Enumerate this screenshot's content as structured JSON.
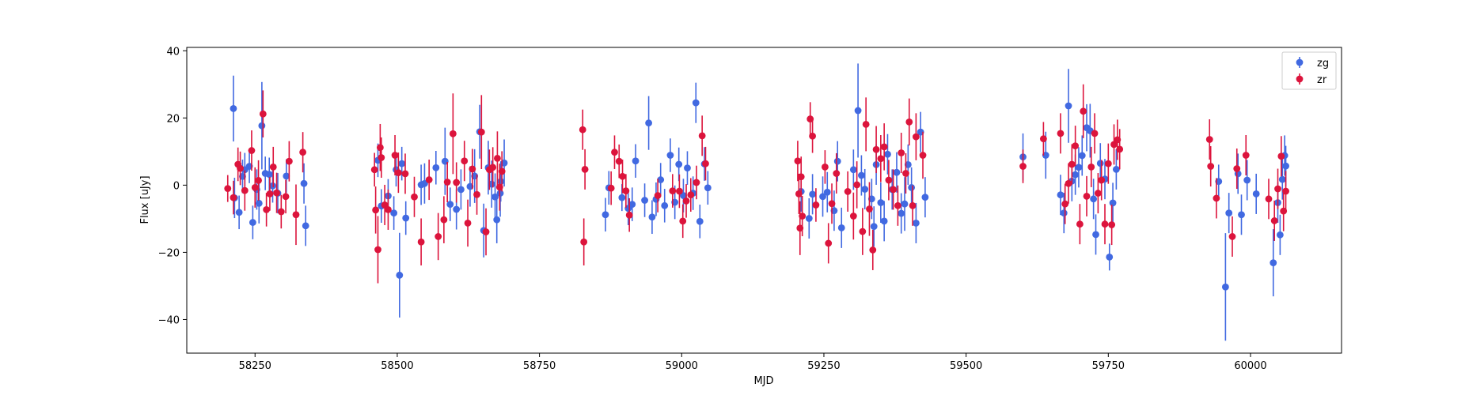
{
  "chart_data": {
    "type": "scatter",
    "title": "",
    "xlabel": "MJD",
    "ylabel": "Flux [uJy]",
    "xlim": [
      58130,
      60160
    ],
    "ylim": [
      -50,
      41
    ],
    "xticks": [
      58250,
      58500,
      58750,
      59000,
      59250,
      59500,
      59750,
      60000
    ],
    "yticks": [
      -40,
      -20,
      0,
      20,
      40
    ],
    "grid": false,
    "legend_position": "top-right",
    "series": [
      {
        "name": "zg",
        "color": "#4169e1",
        "points": [
          [
            58212,
            22.8,
            9.8
          ],
          [
            58214,
            -3.8,
            6
          ],
          [
            58222,
            -8.1,
            5
          ],
          [
            58228,
            2.6,
            5
          ],
          [
            58232,
            4.6,
            5
          ],
          [
            58240,
            5.6,
            5
          ],
          [
            58246,
            -11.1,
            5
          ],
          [
            58253,
            -1.3,
            6
          ],
          [
            58257,
            -5.4,
            6
          ],
          [
            58262,
            17.7,
            13
          ],
          [
            58268,
            3.5,
            5
          ],
          [
            58275,
            3.2,
            5
          ],
          [
            58281,
            -0.2,
            5
          ],
          [
            58290,
            -2.4,
            6
          ],
          [
            58305,
            2.7,
            5
          ],
          [
            58336,
            0.5,
            6
          ],
          [
            58339,
            -12.1,
            6
          ],
          [
            58466,
            7.4,
            5
          ],
          [
            58472,
            -6.2,
            5
          ],
          [
            58484,
            -3.2,
            5
          ],
          [
            58494,
            -8.3,
            5
          ],
          [
            58498,
            4.6,
            5
          ],
          [
            58504,
            -26.8,
            12.6
          ],
          [
            58508,
            6.4,
            5
          ],
          [
            58515,
            -9.8,
            5
          ],
          [
            58542,
            0.1,
            6
          ],
          [
            58548,
            0.5,
            6
          ],
          [
            58568,
            5.2,
            5
          ],
          [
            58584,
            7.1,
            10
          ],
          [
            58593,
            -5.7,
            5
          ],
          [
            58604,
            -7.2,
            6
          ],
          [
            58612,
            -1.3,
            6
          ],
          [
            58628,
            -0.4,
            6
          ],
          [
            58636,
            2.7,
            8
          ],
          [
            58645,
            15.9,
            8
          ],
          [
            58652,
            -13.5,
            8
          ],
          [
            58660,
            5.2,
            8
          ],
          [
            58666,
            0.3,
            7
          ],
          [
            58672,
            -3.5,
            7
          ],
          [
            58675,
            -10.3,
            7
          ],
          [
            58681,
            -2.4,
            7
          ],
          [
            58688,
            6.6,
            7
          ],
          [
            58682,
            1.1,
            6
          ],
          [
            58866,
            -8.8,
            5
          ],
          [
            58872,
            -0.8,
            5
          ],
          [
            58895,
            -3.7,
            4
          ],
          [
            58906,
            -6.9,
            5
          ],
          [
            58913,
            -5.7,
            5
          ],
          [
            58919,
            7.2,
            5
          ],
          [
            58935,
            -4.5,
            5
          ],
          [
            58942,
            18.5,
            8
          ],
          [
            58948,
            -9.5,
            5
          ],
          [
            58955,
            -4.2,
            5
          ],
          [
            58963,
            1.6,
            5
          ],
          [
            58970,
            -6.1,
            5
          ],
          [
            58980,
            8.9,
            5
          ],
          [
            58988,
            -5.1,
            5
          ],
          [
            58995,
            6.2,
            5
          ],
          [
            59003,
            -3.1,
            5
          ],
          [
            59010,
            5.1,
            5
          ],
          [
            59020,
            -2.4,
            5
          ],
          [
            59025,
            24.5,
            6
          ],
          [
            59032,
            -10.8,
            5
          ],
          [
            59040,
            6.3,
            5
          ],
          [
            59046,
            -0.8,
            5
          ],
          [
            59210,
            -1.9,
            6
          ],
          [
            59224,
            -9.9,
            6
          ],
          [
            59230,
            -2.7,
            6
          ],
          [
            59248,
            -3.4,
            6
          ],
          [
            59256,
            -2.1,
            6
          ],
          [
            59268,
            -7.6,
            6
          ],
          [
            59274,
            7.1,
            6
          ],
          [
            59281,
            -12.7,
            6
          ],
          [
            59302,
            4.6,
            6
          ],
          [
            59310,
            22.2,
            14
          ],
          [
            59316,
            2.9,
            6
          ],
          [
            59322,
            -1.2,
            6
          ],
          [
            59334,
            -4.1,
            6
          ],
          [
            59338,
            -12.3,
            6
          ],
          [
            59342,
            6.1,
            6
          ],
          [
            59350,
            -5.2,
            6
          ],
          [
            59356,
            -10.7,
            6
          ],
          [
            59362,
            9.2,
            6
          ],
          [
            59370,
            -1.3,
            6
          ],
          [
            59378,
            3.8,
            6
          ],
          [
            59386,
            -8.4,
            6
          ],
          [
            59392,
            -5.6,
            8
          ],
          [
            59398,
            6.1,
            6
          ],
          [
            59404,
            -0.7,
            6
          ],
          [
            59412,
            -11.3,
            6
          ],
          [
            59420,
            15.8,
            6
          ],
          [
            59428,
            -3.6,
            6
          ],
          [
            59600,
            8.4,
            7
          ],
          [
            59640,
            8.9,
            7
          ],
          [
            59666,
            -2.9,
            6
          ],
          [
            59672,
            -8.3,
            6
          ],
          [
            59680,
            23.6,
            11
          ],
          [
            59686,
            1.2,
            6
          ],
          [
            59692,
            3.1,
            6
          ],
          [
            59698,
            5.3,
            6
          ],
          [
            59704,
            8.8,
            6
          ],
          [
            59712,
            17.1,
            7
          ],
          [
            59718,
            16.2,
            8
          ],
          [
            59724,
            -4.1,
            6
          ],
          [
            59728,
            -14.7,
            6
          ],
          [
            59736,
            6.5,
            6
          ],
          [
            59744,
            1.8,
            6
          ],
          [
            59752,
            -21.4,
            4
          ],
          [
            59758,
            -5.3,
            6
          ],
          [
            59764,
            4.7,
            6
          ],
          [
            59944,
            1.1,
            5
          ],
          [
            59956,
            -30.3,
            16
          ],
          [
            59962,
            -8.3,
            6
          ],
          [
            59978,
            3.4,
            6
          ],
          [
            59984,
            -8.8,
            6
          ],
          [
            59994,
            1.5,
            6
          ],
          [
            60010,
            -2.6,
            6
          ],
          [
            60040,
            -23.1,
            10
          ],
          [
            60048,
            -5.2,
            6
          ],
          [
            60052,
            -14.8,
            6
          ],
          [
            60056,
            1.7,
            6
          ],
          [
            60060,
            8.8,
            6
          ],
          [
            60062,
            5.7,
            6
          ]
        ]
      },
      {
        "name": "zr",
        "color": "#dc143c",
        "points": [
          [
            58202,
            -1.0,
            4
          ],
          [
            58212,
            -3.7,
            5
          ],
          [
            58220,
            6.2,
            5
          ],
          [
            58224,
            5.0,
            5
          ],
          [
            58232,
            -1.6,
            6
          ],
          [
            58244,
            10.3,
            6
          ],
          [
            58250,
            -0.7,
            6
          ],
          [
            58256,
            1.4,
            6
          ],
          [
            58264,
            21.2,
            7
          ],
          [
            58270,
            -7.3,
            5
          ],
          [
            58276,
            -2.6,
            5
          ],
          [
            58282,
            5.4,
            6
          ],
          [
            58288,
            -2.3,
            6
          ],
          [
            58296,
            -7.9,
            5
          ],
          [
            58304,
            -3.4,
            5
          ],
          [
            58310,
            7.1,
            6
          ],
          [
            58322,
            -8.8,
            9
          ],
          [
            58334,
            9.8,
            6
          ],
          [
            58460,
            4.6,
            5
          ],
          [
            58462,
            -7.4,
            7
          ],
          [
            58466,
            -19.2,
            10
          ],
          [
            58470,
            11.2,
            7
          ],
          [
            58472,
            8.2,
            6
          ],
          [
            58478,
            -5.9,
            6
          ],
          [
            58484,
            -7.3,
            6
          ],
          [
            58496,
            8.9,
            6
          ],
          [
            58502,
            3.7,
            6
          ],
          [
            58514,
            3.4,
            6
          ],
          [
            58530,
            -3.5,
            6
          ],
          [
            58542,
            -16.9,
            7
          ],
          [
            58556,
            1.6,
            6
          ],
          [
            58572,
            -15.3,
            7
          ],
          [
            58582,
            -10.3,
            7
          ],
          [
            58588,
            0.9,
            6
          ],
          [
            58598,
            15.3,
            12
          ],
          [
            58604,
            0.8,
            6
          ],
          [
            58618,
            7.2,
            6
          ],
          [
            58624,
            -11.3,
            7
          ],
          [
            58632,
            4.8,
            6
          ],
          [
            58640,
            -2.8,
            6
          ],
          [
            58648,
            15.8,
            11
          ],
          [
            58656,
            -13.9,
            7
          ],
          [
            58662,
            4.6,
            6
          ],
          [
            58668,
            5.3,
            6
          ],
          [
            58676,
            8.0,
            8
          ],
          [
            58680,
            -0.6,
            7
          ],
          [
            58684,
            4.1,
            6
          ],
          [
            58826,
            16.5,
            6
          ],
          [
            58828,
            -16.9,
            7
          ],
          [
            58830,
            4.7,
            6
          ],
          [
            58876,
            -0.9,
            5
          ],
          [
            58882,
            9.8,
            5
          ],
          [
            58890,
            7.1,
            5
          ],
          [
            58896,
            2.6,
            5
          ],
          [
            58902,
            -1.7,
            5
          ],
          [
            58908,
            -8.9,
            5
          ],
          [
            58958,
            -3.1,
            5
          ],
          [
            58984,
            -1.7,
            5
          ],
          [
            58996,
            -1.8,
            5
          ],
          [
            59002,
            -10.7,
            5
          ],
          [
            59008,
            -4.7,
            5
          ],
          [
            59016,
            -2.9,
            5
          ],
          [
            59026,
            0.8,
            5
          ],
          [
            59036,
            14.7,
            6
          ],
          [
            59042,
            6.4,
            5
          ],
          [
            59204,
            7.2,
            6
          ],
          [
            59206,
            -2.6,
            6
          ],
          [
            59208,
            -12.8,
            8
          ],
          [
            59210,
            2.5,
            6
          ],
          [
            59212,
            -9.2,
            6
          ],
          [
            59226,
            19.7,
            5
          ],
          [
            59230,
            14.6,
            5
          ],
          [
            59236,
            -5.9,
            5
          ],
          [
            59252,
            5.4,
            5
          ],
          [
            59258,
            -17.3,
            6
          ],
          [
            59264,
            -5.5,
            6
          ],
          [
            59272,
            3.5,
            6
          ],
          [
            59292,
            -1.9,
            6
          ],
          [
            59302,
            -9.2,
            7
          ],
          [
            59308,
            0.1,
            7
          ],
          [
            59318,
            -13.8,
            7
          ],
          [
            59324,
            18.1,
            8
          ],
          [
            59330,
            -7.1,
            8
          ],
          [
            59336,
            -19.3,
            6
          ],
          [
            59342,
            10.6,
            7
          ],
          [
            59350,
            7.9,
            7
          ],
          [
            59356,
            11.4,
            7
          ],
          [
            59364,
            1.5,
            6
          ],
          [
            59372,
            -1.3,
            6
          ],
          [
            59380,
            -6.1,
            6
          ],
          [
            59386,
            9.6,
            6
          ],
          [
            59394,
            3.5,
            6
          ],
          [
            59400,
            18.8,
            7
          ],
          [
            59406,
            -6.1,
            6
          ],
          [
            59412,
            14.4,
            7
          ],
          [
            59424,
            8.9,
            7
          ],
          [
            59600,
            5.6,
            5
          ],
          [
            59636,
            13.8,
            5
          ],
          [
            59666,
            15.4,
            6
          ],
          [
            59674,
            -5.6,
            6
          ],
          [
            59680,
            0.5,
            6
          ],
          [
            59686,
            6.2,
            6
          ],
          [
            59692,
            11.7,
            6
          ],
          [
            59700,
            -11.6,
            6
          ],
          [
            59706,
            22.0,
            8
          ],
          [
            59712,
            -3.3,
            6
          ],
          [
            59720,
            5.4,
            6
          ],
          [
            59726,
            15.4,
            6
          ],
          [
            59732,
            -2.4,
            6
          ],
          [
            59738,
            1.5,
            6
          ],
          [
            59744,
            -11.6,
            6
          ],
          [
            59750,
            6.4,
            6
          ],
          [
            59756,
            -11.8,
            6
          ],
          [
            59760,
            12.1,
            6
          ],
          [
            59766,
            13.5,
            6
          ],
          [
            59770,
            10.7,
            6
          ],
          [
            59928,
            13.6,
            6
          ],
          [
            59930,
            5.6,
            6
          ],
          [
            59940,
            -3.9,
            6
          ],
          [
            59968,
            -15.3,
            6
          ],
          [
            59976,
            4.9,
            6
          ],
          [
            59992,
            8.9,
            6
          ],
          [
            60032,
            -4.1,
            6
          ],
          [
            60042,
            -10.6,
            6
          ],
          [
            60048,
            -1.1,
            6
          ],
          [
            60054,
            8.6,
            6
          ],
          [
            60058,
            -7.7,
            6
          ],
          [
            60062,
            -1.8,
            6
          ]
        ]
      }
    ]
  }
}
